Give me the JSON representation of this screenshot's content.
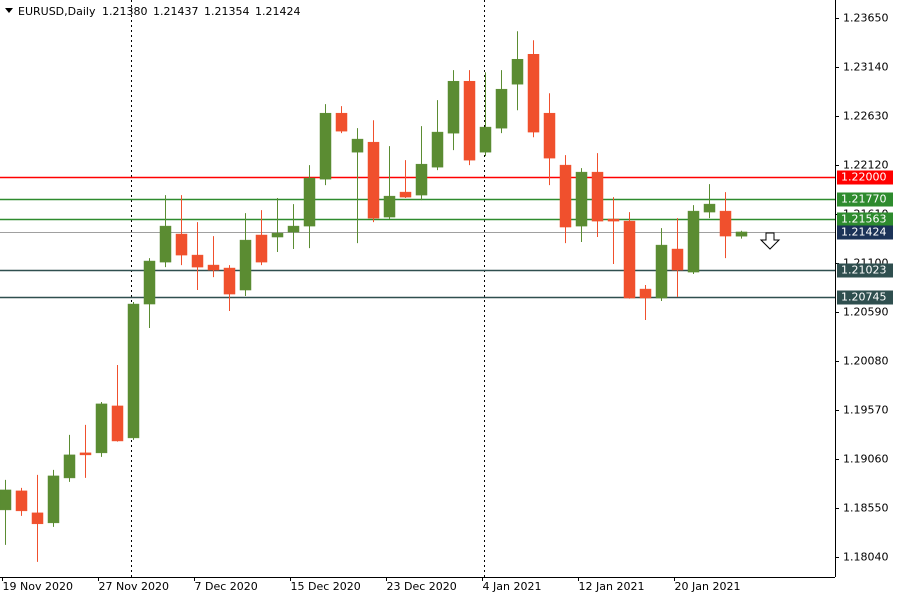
{
  "chart_data": {
    "type": "candlestick",
    "title": "EURUSD,Daily",
    "last_bar_labels": [
      "1.21380",
      "1.21437",
      "1.21354",
      "1.21424"
    ],
    "categories": [
      "19 Nov 2020",
      null,
      null,
      null,
      null,
      null,
      "27 Nov 2020",
      null,
      null,
      null,
      null,
      null,
      "7 Dec 2020",
      null,
      null,
      null,
      null,
      null,
      "15 Dec 2020",
      null,
      null,
      null,
      null,
      null,
      "23 Dec 2020",
      null,
      null,
      null,
      null,
      null,
      "4 Jan 2021",
      null,
      null,
      null,
      null,
      null,
      "12 Jan 2021",
      null,
      null,
      null,
      null,
      null,
      "20 Jan 2021",
      null,
      null,
      null,
      null
    ],
    "open": [
      1.18529,
      1.18727,
      1.18498,
      1.18394,
      1.18862,
      1.19123,
      1.19123,
      1.19612,
      1.19279,
      1.20673,
      1.2111,
      1.21402,
      1.21183,
      1.21079,
      1.21048,
      1.20819,
      1.21392,
      1.21371,
      1.21423,
      1.21485,
      1.21974,
      1.22661,
      1.22255,
      1.22359,
      1.21579,
      1.21839,
      1.21808,
      1.22099,
      1.22453,
      1.22994,
      1.22255,
      1.22505,
      1.22963,
      1.23275,
      1.22661,
      1.2212,
      1.21485,
      1.22047,
      1.21558,
      1.21537,
      1.20829,
      1.20736,
      1.21246,
      1.21006,
      1.21631,
      1.21641,
      1.2138
    ],
    "high": [
      1.18842,
      1.18758,
      1.18894,
      1.18946,
      1.1931,
      1.19414,
      1.19653,
      1.20038,
      1.20694,
      1.21152,
      1.21808,
      1.21808,
      1.21527,
      1.21381,
      1.21079,
      1.2162,
      1.21652,
      1.21777,
      1.21714,
      1.2212,
      1.22755,
      1.22734,
      1.22505,
      1.22588,
      1.22318,
      1.22172,
      1.22526,
      1.22797,
      1.23109,
      1.23109,
      1.23088,
      1.23109,
      1.23515,
      1.23421,
      1.22869,
      1.22224,
      1.22089,
      1.22245,
      1.21787,
      1.21631,
      1.20871,
      1.21464,
      1.21568,
      1.21704,
      1.21922,
      1.21839,
      1.21437
    ],
    "low": [
      1.18165,
      1.18467,
      1.17988,
      1.18352,
      1.18821,
      1.18862,
      1.19081,
      1.1924,
      1.19258,
      1.20424,
      1.21058,
      1.21079,
      1.20819,
      1.20954,
      1.206,
      1.20757,
      1.21079,
      1.21215,
      1.21246,
      1.21256,
      1.21912,
      1.22453,
      1.21308,
      1.21527,
      1.21558,
      1.21777,
      1.21756,
      1.22068,
      1.22276,
      1.2212,
      1.22214,
      1.22453,
      1.22692,
      1.22411,
      1.21912,
      1.21308,
      1.21319,
      1.21371,
      1.2109,
      1.2073,
      1.20507,
      1.20705,
      1.20746,
      1.20986,
      1.21568,
      1.21152,
      1.21354
    ],
    "close": [
      1.18737,
      1.18519,
      1.18384,
      1.18883,
      1.19102,
      1.19102,
      1.19633,
      1.19247,
      1.20673,
      1.21121,
      1.21485,
      1.21183,
      1.21058,
      1.21027,
      1.20777,
      1.21339,
      1.2111,
      1.21412,
      1.21485,
      1.21985,
      1.22661,
      1.22474,
      1.22391,
      1.21568,
      1.21797,
      1.21787,
      1.2213,
      1.22464,
      1.22994,
      1.22172,
      1.22516,
      1.22911,
      1.23223,
      1.22464,
      1.22193,
      1.21475,
      1.22047,
      1.21537,
      1.21537,
      1.20736,
      1.20736,
      1.21287,
      1.21027,
      1.21641,
      1.21714,
      1.21381,
      1.21424
    ],
    "up_color": "#5b8c32",
    "down_color": "#f0502d",
    "ylim": [
      1.1783,
      1.2384
    ],
    "yticks": [
      {
        "value": 1.2365,
        "label": "1.23650"
      },
      {
        "value": 1.2314,
        "label": "1.23140"
      },
      {
        "value": 1.2263,
        "label": "1.22630"
      },
      {
        "value": 1.2212,
        "label": "1.22120"
      },
      {
        "value": 1.2161,
        "label": "1.21610"
      },
      {
        "value": 1.211,
        "label": "1.21100"
      },
      {
        "value": 1.2059,
        "label": "1.20590"
      },
      {
        "value": 1.2008,
        "label": "1.20080"
      },
      {
        "value": 1.1957,
        "label": "1.19570"
      },
      {
        "value": 1.1906,
        "label": "1.19060"
      },
      {
        "value": 1.1855,
        "label": "1.18550"
      },
      {
        "value": 1.1804,
        "label": "1.18040"
      }
    ],
    "levels": [
      {
        "value": 1.22,
        "label": "1.22000",
        "color": "#ff0000"
      },
      {
        "value": 1.2177,
        "label": "1.21770",
        "color": "#2e8b2e"
      },
      {
        "value": 1.21563,
        "color": "#2e8b2e"
      },
      {
        "value": 1.21424,
        "color": "#1c3358"
      },
      {
        "value": 1.21023,
        "color": "#2f4f4f"
      },
      {
        "value": 1.20745,
        "color": "#2f4f4f"
      }
    ]
  }
}
